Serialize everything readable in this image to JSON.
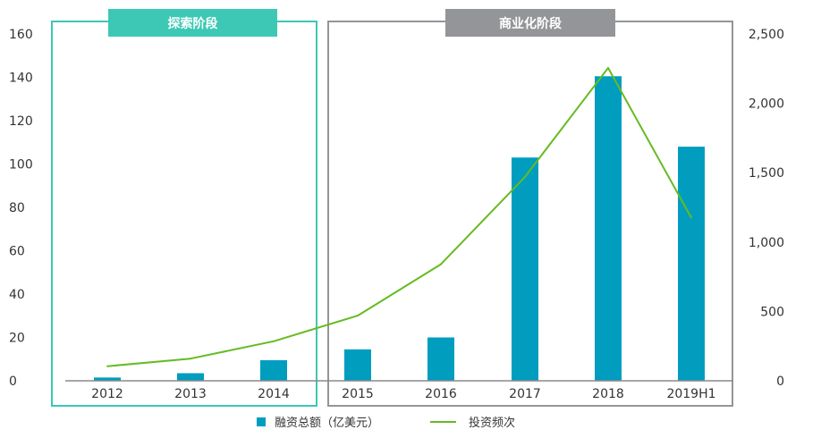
{
  "chart_data": {
    "type": "bar",
    "categories": [
      "2012",
      "2013",
      "2014",
      "2015",
      "2016",
      "2017",
      "2018",
      "2019H1"
    ],
    "series": [
      {
        "name": "融资总额（亿美元）",
        "type": "bar",
        "axis": "left",
        "color": "#009DBF",
        "values": [
          1.5,
          3.5,
          9.5,
          14.5,
          20,
          103,
          140.5,
          108
        ]
      },
      {
        "name": "投资频次",
        "type": "line",
        "axis": "right",
        "color": "#66BB22",
        "values": [
          105,
          160,
          285,
          470,
          840,
          1470,
          2255,
          1175
        ]
      }
    ],
    "y_left": {
      "ylim": [
        0,
        160
      ],
      "ticks": [
        "0",
        "20",
        "40",
        "60",
        "80",
        "100",
        "120",
        "140",
        "160"
      ]
    },
    "y_right": {
      "ylim": [
        0,
        2500
      ],
      "ticks": [
        "0",
        "500",
        "1,000",
        "1,500",
        "2,000",
        "2,500"
      ]
    },
    "phases": [
      {
        "label": "探索阶段",
        "color": "#3CC8B4",
        "categories": [
          "2012",
          "2013",
          "2014"
        ]
      },
      {
        "label": "商业化阶段",
        "color": "#939598",
        "categories": [
          "2015",
          "2016",
          "2017",
          "2018",
          "2019H1"
        ]
      }
    ],
    "grid": false,
    "legend_position": "bottom"
  }
}
